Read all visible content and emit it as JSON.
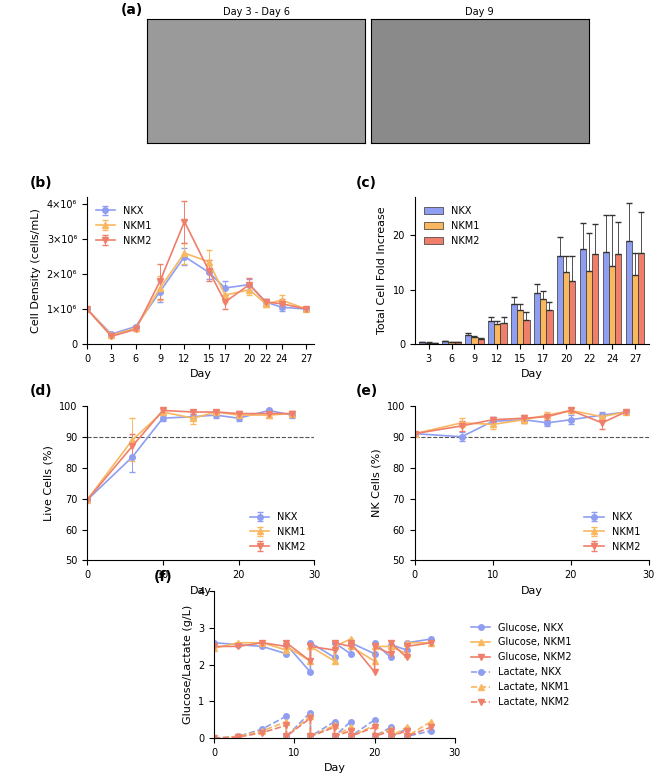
{
  "chart_data": [
    {
      "type": "image",
      "panel": "(a)",
      "images": [
        "Day 3 - Day 6",
        "Day 9"
      ]
    },
    {
      "type": "line",
      "panel": "(b)",
      "x_label": "Day",
      "y_label": "Cell Density (cells/mL)",
      "x": [
        0,
        3,
        6,
        9,
        12,
        15,
        17,
        20,
        22,
        24,
        27
      ],
      "xlim": [
        0,
        28
      ],
      "xticks": [
        0,
        3,
        6,
        9,
        12,
        15,
        17,
        20,
        22,
        24,
        27
      ],
      "ylim": [
        0,
        4200000
      ],
      "yticks": [
        0,
        {
          "value": 1000000,
          "label": "1×10⁶"
        },
        {
          "value": 2000000,
          "label": "2×10⁶"
        },
        {
          "value": 3000000,
          "label": "3×10⁶"
        },
        {
          "value": 4000000,
          "label": "4×10⁶"
        }
      ],
      "legend": "upper left",
      "series": [
        {
          "name": "NKX",
          "color": "#8f9ef0",
          "marker": "circle",
          "line_style": "solid",
          "values": [
            1000000,
            280000,
            500000,
            1500000,
            2500000,
            2050000,
            1600000,
            1700000,
            1200000,
            1050000,
            1000000
          ],
          "errors": [
            0,
            30000,
            50000,
            300000,
            250000,
            200000,
            200000,
            150000,
            80000,
            100000,
            50000
          ]
        },
        {
          "name": "NKM1",
          "color": "#f9b860",
          "marker": "triangle_up",
          "line_style": "solid",
          "values": [
            1000000,
            250000,
            450000,
            1600000,
            2600000,
            2350000,
            1400000,
            1550000,
            1150000,
            1250000,
            1000000
          ],
          "errors": [
            0,
            30000,
            50000,
            350000,
            300000,
            350000,
            200000,
            150000,
            80000,
            150000,
            50000
          ]
        },
        {
          "name": "NKM2",
          "color": "#ef7f6a",
          "marker": "triangle_down",
          "line_style": "solid",
          "values": [
            1000000,
            220000,
            420000,
            1800000,
            3500000,
            2100000,
            1200000,
            1700000,
            1200000,
            1150000,
            1000000
          ],
          "errors": [
            0,
            30000,
            50000,
            500000,
            600000,
            300000,
            200000,
            200000,
            80000,
            150000,
            50000
          ]
        }
      ]
    },
    {
      "type": "bar",
      "panel": "(c)",
      "x_label": "Day",
      "y_label": "Total Cell Fold Increase",
      "categories": [
        "3",
        "6",
        "9",
        "12",
        "15",
        "17",
        "20",
        "22",
        "24",
        "27"
      ],
      "ylim": [
        0,
        27
      ],
      "yticks": [
        0,
        10,
        20
      ],
      "legend": "upper left",
      "series": [
        {
          "name": "NKX",
          "color": "#8f9ef0",
          "values": [
            0.3,
            0.5,
            1.7,
            4.2,
            7.3,
            9.3,
            16.1,
            17.5,
            17.0,
            18.9
          ],
          "errors": [
            0.05,
            0.1,
            0.3,
            0.8,
            1.3,
            1.8,
            3.5,
            4.8,
            6.7,
            7.0
          ]
        },
        {
          "name": "NKM1",
          "color": "#f9b860",
          "values": [
            0.25,
            0.4,
            1.2,
            3.6,
            6.3,
            8.2,
            13.2,
            13.4,
            14.3,
            12.7
          ],
          "errors": [
            0.05,
            0.05,
            0.2,
            0.6,
            1.0,
            1.5,
            3.0,
            7.0,
            9.5,
            4.0
          ]
        },
        {
          "name": "NKM2",
          "color": "#ef7f6a",
          "values": [
            0.2,
            0.3,
            0.9,
            3.9,
            4.5,
            6.2,
            11.6,
            16.6,
            16.5,
            16.7
          ],
          "errors": [
            0.05,
            0.05,
            0.2,
            1.0,
            1.3,
            1.5,
            4.5,
            5.5,
            6.0,
            7.5
          ]
        }
      ]
    },
    {
      "type": "line",
      "panel": "(d)",
      "x_label": "Day",
      "y_label": "Live Cells (%)",
      "x": [
        0,
        6,
        10,
        14,
        17,
        20,
        24,
        27
      ],
      "xlim": [
        0,
        30
      ],
      "xticks": [
        0,
        10,
        20,
        30
      ],
      "ylim": [
        50,
        100
      ],
      "yticks": [
        50,
        60,
        70,
        80,
        90,
        100
      ],
      "reference_line": 90,
      "legend": "lower right",
      "series": [
        {
          "name": "NKX",
          "color": "#8f9ef0",
          "marker": "circle",
          "line_style": "solid",
          "values": [
            69.5,
            83.5,
            96,
            96.5,
            97,
            96,
            98.5,
            97
          ],
          "errors": [
            0.5,
            5,
            1,
            1,
            1,
            0.8,
            0.5,
            0.8
          ]
        },
        {
          "name": "NKM1",
          "color": "#f9b860",
          "marker": "triangle_up",
          "line_style": "solid",
          "values": [
            69.5,
            89,
            98,
            96,
            98,
            97,
            97,
            97.5
          ],
          "errors": [
            0.5,
            7,
            0.5,
            2,
            0.8,
            0.8,
            1,
            0.8
          ]
        },
        {
          "name": "NKM2",
          "color": "#ef7f6a",
          "marker": "triangle_down",
          "line_style": "solid",
          "values": [
            69.5,
            87,
            98.5,
            98,
            98,
            97.5,
            97.5,
            97.5
          ],
          "errors": [
            0.5,
            4,
            0.5,
            0.8,
            0.8,
            0.8,
            1,
            0.8
          ]
        }
      ]
    },
    {
      "type": "line",
      "panel": "(e)",
      "x_label": "Day",
      "y_label": "NK Cells (%)",
      "x": [
        0,
        6,
        10,
        14,
        17,
        20,
        24,
        27
      ],
      "xlim": [
        0,
        30
      ],
      "xticks": [
        0,
        10,
        20,
        30
      ],
      "ylim": [
        50,
        100
      ],
      "yticks": [
        50,
        60,
        70,
        80,
        90,
        100
      ],
      "reference_line": 90,
      "legend": "lower right",
      "series": [
        {
          "name": "NKX",
          "color": "#8f9ef0",
          "marker": "circle",
          "line_style": "solid",
          "values": [
            91,
            90,
            95,
            95.5,
            94.5,
            95.5,
            97,
            98
          ],
          "errors": [
            0.5,
            1.5,
            1.5,
            1,
            1,
            1.5,
            1,
            0.8
          ]
        },
        {
          "name": "NKM1",
          "color": "#f9b860",
          "marker": "triangle_up",
          "line_style": "solid",
          "values": [
            91,
            94.5,
            94,
            95.5,
            97,
            98.5,
            96.5,
            98
          ],
          "errors": [
            0.5,
            1.5,
            1.5,
            1,
            1,
            0.8,
            1,
            0.8
          ]
        },
        {
          "name": "NKM2",
          "color": "#ef7f6a",
          "marker": "triangle_down",
          "line_style": "solid",
          "values": [
            91,
            93.5,
            95.5,
            96,
            96.5,
            98.5,
            94.5,
            98
          ],
          "errors": [
            0.5,
            1.5,
            1,
            1,
            1,
            0.8,
            2,
            0.8
          ]
        }
      ]
    },
    {
      "type": "line",
      "panel": "(f)",
      "x_label": "Day",
      "y_label": "Glucose/Lactate (g/L)",
      "x": [
        0,
        3,
        6,
        9,
        9,
        12,
        12,
        15,
        15,
        17,
        17,
        20,
        20,
        22,
        22,
        24,
        24,
        27
      ],
      "xlim": [
        0,
        30
      ],
      "xticks": [
        0,
        10,
        20,
        30
      ],
      "ylim": [
        0,
        4
      ],
      "yticks": [
        0,
        1,
        2,
        3,
        4
      ],
      "legend": "right",
      "series": [
        {
          "name": "Glucose, NKX",
          "color": "#8f9ef0",
          "marker": "circle",
          "line_style": "solid",
          "values": [
            2.6,
            2.55,
            2.5,
            2.3,
            2.55,
            1.8,
            2.6,
            2.2,
            2.6,
            2.3,
            2.6,
            2.3,
            2.6,
            2.2,
            2.55,
            2.4,
            2.6,
            2.7
          ]
        },
        {
          "name": "Glucose, NKM1",
          "color": "#f9b860",
          "marker": "triangle_up",
          "line_style": "solid",
          "values": [
            2.45,
            2.6,
            2.6,
            2.4,
            2.5,
            2.1,
            2.5,
            2.1,
            2.5,
            2.7,
            2.5,
            2.1,
            2.5,
            2.5,
            2.5,
            2.3,
            2.6,
            2.6
          ]
        },
        {
          "name": "Glucose, NKM2",
          "color": "#ef7f6a",
          "marker": "triangle_down",
          "line_style": "solid",
          "values": [
            2.5,
            2.5,
            2.6,
            2.5,
            2.6,
            2.1,
            2.5,
            2.4,
            2.6,
            2.5,
            2.6,
            1.8,
            2.5,
            2.3,
            2.6,
            2.2,
            2.5,
            2.6
          ]
        },
        {
          "name": "Lactate, NKX",
          "color": "#8f9ef0",
          "marker": "circle",
          "line_style": "dashed",
          "values": [
            0,
            0.05,
            0.25,
            0.6,
            0.05,
            0.7,
            0.05,
            0.45,
            0.05,
            0.45,
            0.05,
            0.5,
            0.05,
            0.3,
            0.05,
            0.25,
            0.05,
            0.2
          ]
        },
        {
          "name": "Lactate, NKM1",
          "color": "#f9b860",
          "marker": "triangle_up",
          "line_style": "dashed",
          "values": [
            0,
            0.05,
            0.2,
            0.45,
            0.05,
            0.6,
            0.05,
            0.35,
            0.05,
            0.3,
            0.05,
            0.35,
            0.05,
            0.25,
            0.05,
            0.3,
            0.05,
            0.45
          ]
        },
        {
          "name": "Lactate, NKM2",
          "color": "#ef7f6a",
          "marker": "triangle_down",
          "line_style": "dashed",
          "values": [
            0,
            0.03,
            0.15,
            0.35,
            0.05,
            0.55,
            0.05,
            0.3,
            0.05,
            0.2,
            0.05,
            0.3,
            0.05,
            0.2,
            0.05,
            0.2,
            0.05,
            0.3
          ]
        }
      ]
    }
  ]
}
